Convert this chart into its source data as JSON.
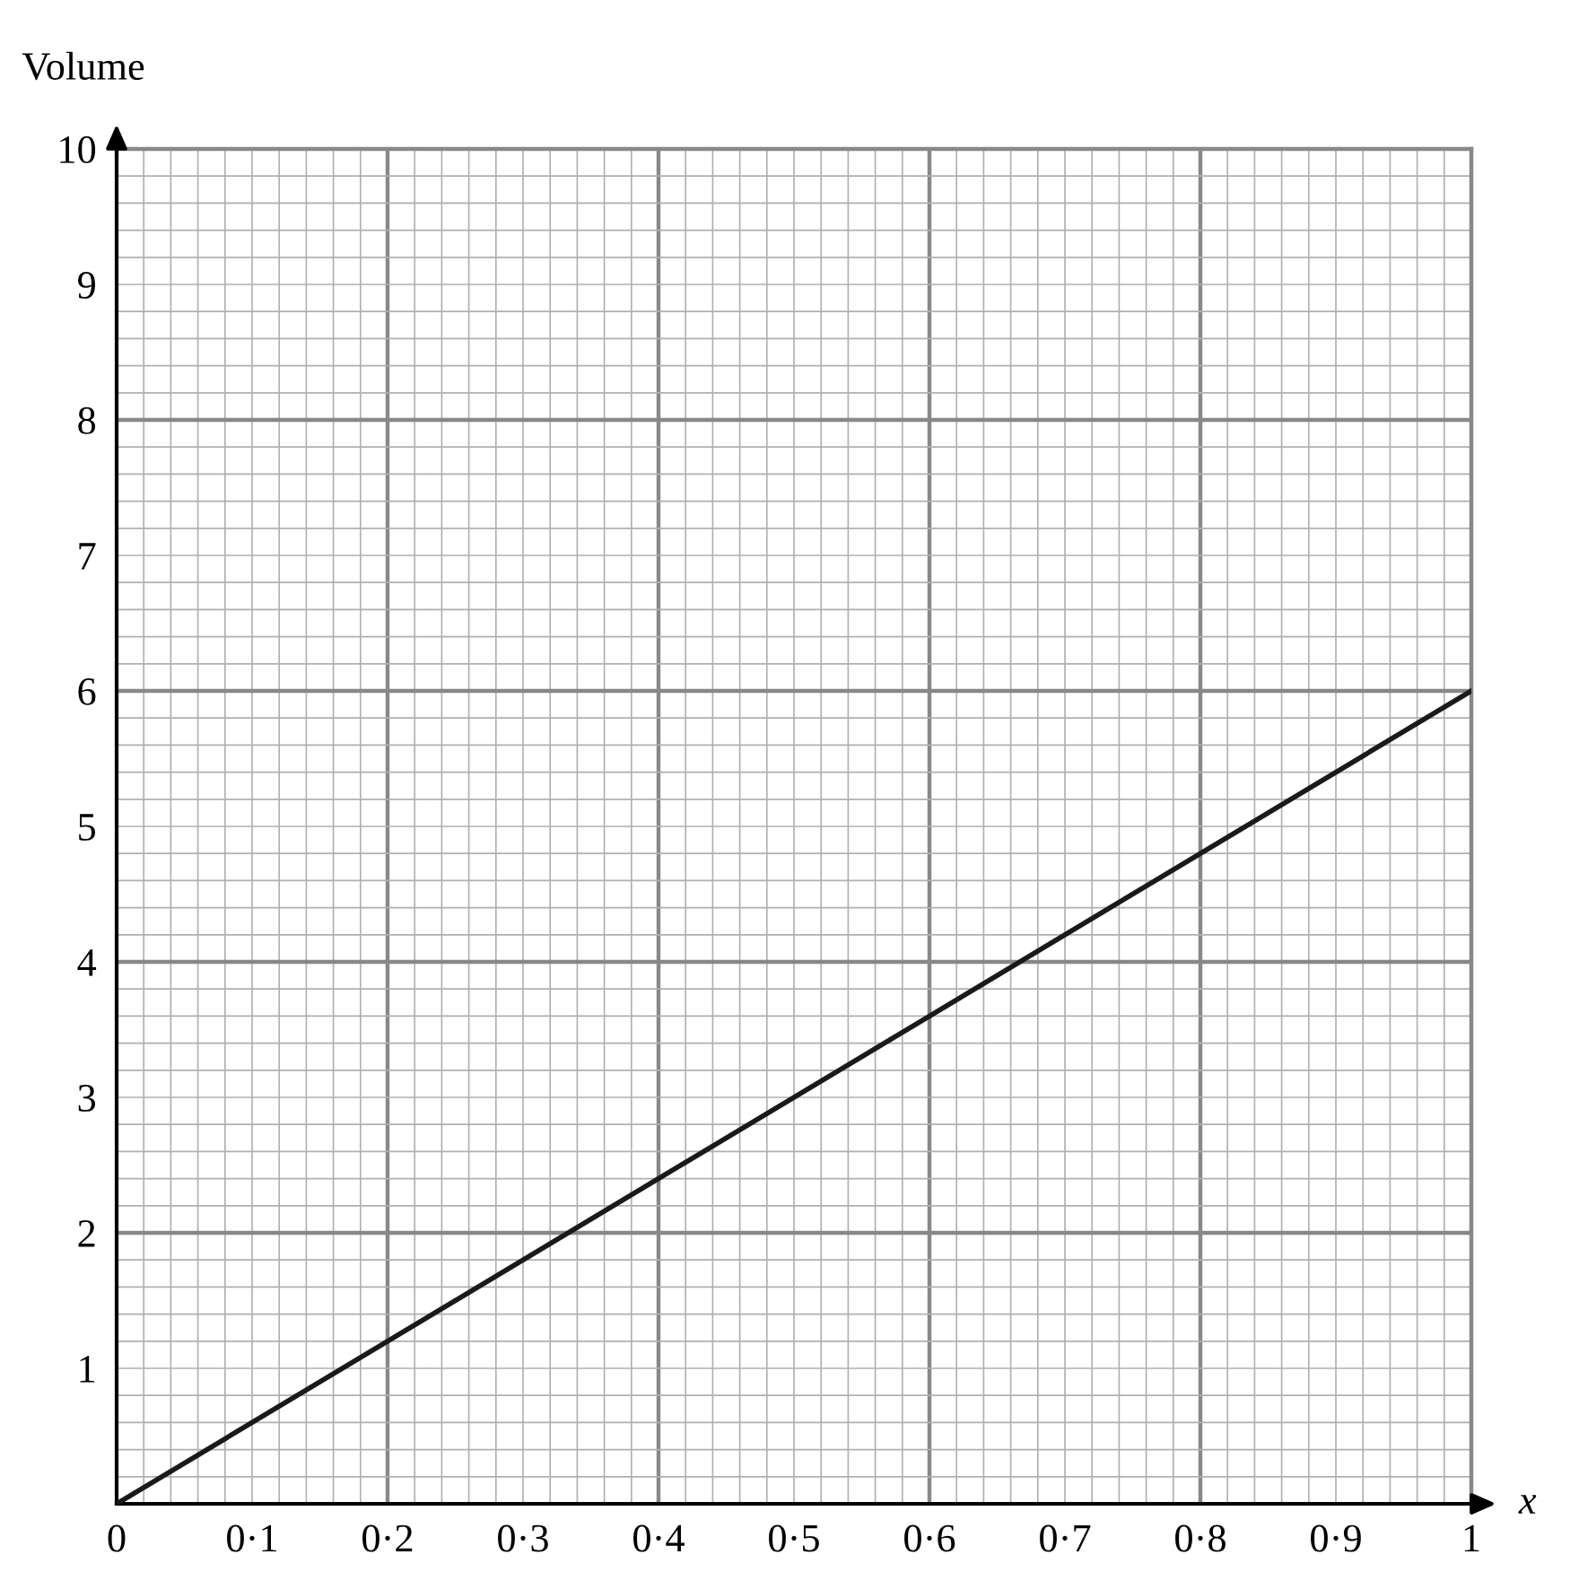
{
  "chart_data": {
    "type": "line",
    "xlabel": "x",
    "ylabel": "Volume",
    "series": [
      {
        "color": "#1a1a1a",
        "x": [
          0,
          1
        ],
        "values": [
          0,
          6
        ]
      }
    ],
    "xlim": [
      0,
      1
    ],
    "ylim": [
      0,
      10
    ],
    "xticks": [
      0,
      {
        "value": 0.1,
        "label": "0·1"
      },
      {
        "value": 0.2,
        "label": "0·2"
      },
      {
        "value": 0.3,
        "label": "0·3"
      },
      {
        "value": 0.4,
        "label": "0·4"
      },
      {
        "value": 0.5,
        "label": "0·5"
      },
      {
        "value": 0.6,
        "label": "0·6"
      },
      {
        "value": 0.7,
        "label": "0·7"
      },
      {
        "value": 0.8,
        "label": "0·8"
      },
      {
        "value": 0.9,
        "label": "0·9"
      },
      1
    ],
    "yticks": [
      {
        "value": 0,
        "label": null
      },
      1,
      2,
      3,
      4,
      5,
      6,
      7,
      8,
      9,
      10
    ],
    "grid": true,
    "legend": false,
    "marker": "none",
    "line_style": "solid"
  }
}
